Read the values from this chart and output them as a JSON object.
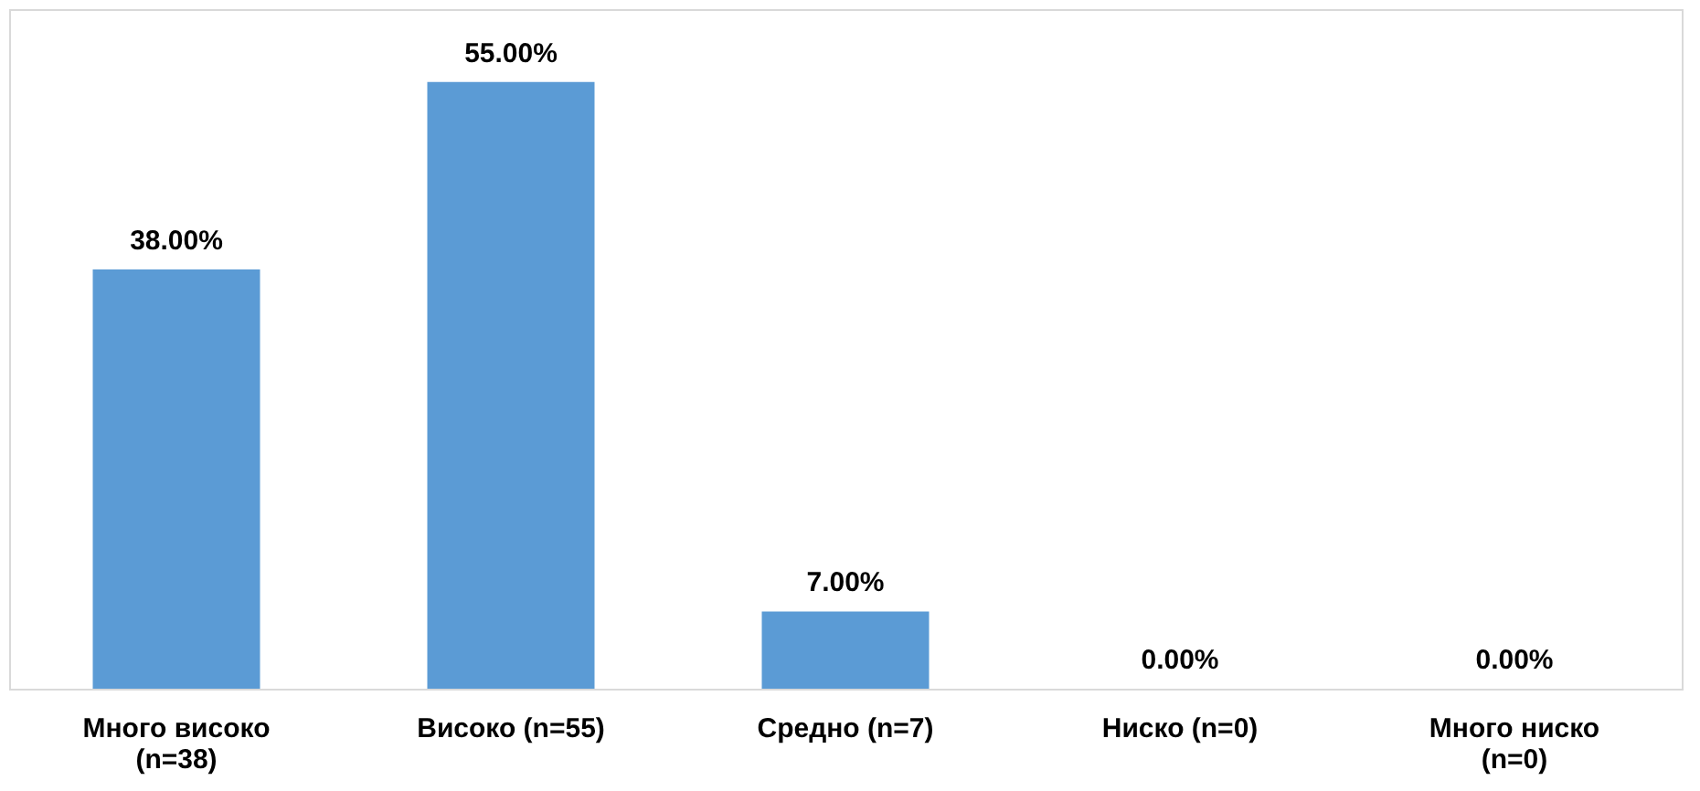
{
  "chart_data": {
    "type": "bar",
    "categories": [
      "Много високо (n=38)",
      "Високо (n=55)",
      "Средно (n=7)",
      "Ниско (n=0)",
      "Много ниско (n=0)"
    ],
    "values": [
      38,
      55,
      7,
      0,
      0
    ],
    "value_labels": [
      "38.00%",
      "55.00%",
      "7.00%",
      "0.00%",
      "0.00%"
    ],
    "color": "#5b9bd5",
    "grid": false
  }
}
